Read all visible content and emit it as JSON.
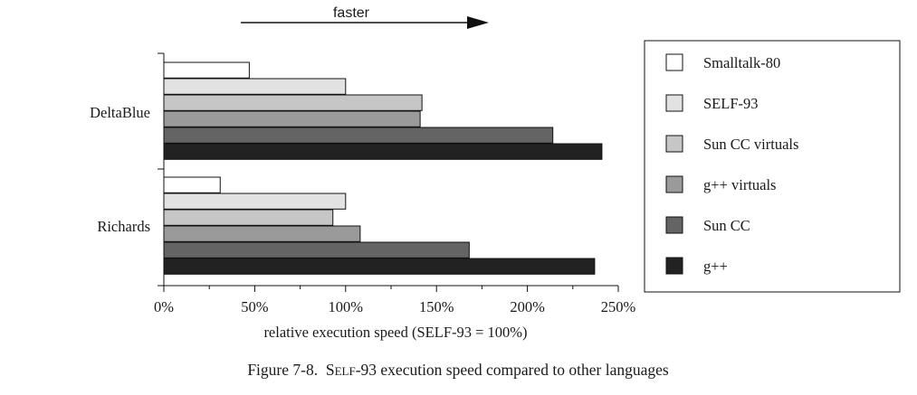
{
  "annotation": {
    "text": "faster"
  },
  "caption": {
    "prefix": "Figure 7-8.  ",
    "self_first": "S",
    "self_rest": "ELF",
    "suffix": "-93 execution speed compared to other languages"
  },
  "colors": {
    "Smalltalk-80": "#ffffff",
    "SELF-93": "#e2e2e2",
    "Sun CC virtuals": "#c6c6c6",
    "g++ virtuals": "#9a9a9a",
    "Sun CC": "#646464",
    "g++": "#222222"
  },
  "chart_data": {
    "type": "bar",
    "orientation": "horizontal",
    "categories": [
      "DeltaBlue",
      "Richards"
    ],
    "series": [
      {
        "name": "Smalltalk-80",
        "values": [
          47,
          31
        ]
      },
      {
        "name": "SELF-93",
        "values": [
          100,
          100
        ]
      },
      {
        "name": "Sun CC virtuals",
        "values": [
          142,
          93
        ]
      },
      {
        "name": "g++ virtuals",
        "values": [
          141,
          108
        ]
      },
      {
        "name": "Sun CC",
        "values": [
          214,
          168
        ]
      },
      {
        "name": "g++",
        "values": [
          241,
          237
        ]
      }
    ],
    "xlabel": "relative execution speed (SELF-93 = 100%)",
    "ylabel": "",
    "xlim": [
      0,
      250
    ],
    "xticks": [
      0,
      50,
      100,
      150,
      200,
      250
    ],
    "xtick_labels": [
      "0%",
      "50%",
      "100%",
      "150%",
      "200%",
      "250%"
    ],
    "grid": false,
    "legend_position": "right"
  }
}
